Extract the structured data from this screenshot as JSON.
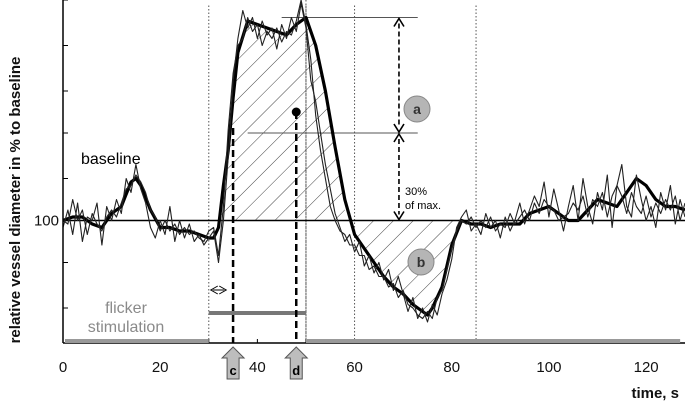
{
  "chart_data": {
    "type": "line",
    "title": "",
    "xlabel": "time, s",
    "ylabel": "relative vessel diameter in % to baseline",
    "xlim": [
      0,
      128
    ],
    "x_ticks": [
      0,
      20,
      40,
      60,
      80,
      100,
      120
    ],
    "y_ticks": [
      100
    ],
    "ylim": [
      65,
      163
    ],
    "grid": false,
    "baseline_value": 100,
    "series": [
      {
        "style": "smoothed-thick",
        "x": [
          0,
          2,
          4,
          6,
          8,
          10,
          12,
          14,
          15,
          16,
          18,
          20,
          22,
          24,
          26,
          28,
          30,
          31,
          32,
          33,
          34,
          35,
          36,
          38,
          40,
          42,
          44,
          46,
          48,
          50,
          52,
          54,
          56,
          58,
          60,
          62,
          64,
          66,
          68,
          70,
          72,
          74,
          75,
          76,
          78,
          80,
          82,
          84,
          86,
          88,
          90,
          92,
          94,
          96,
          98,
          100,
          102,
          104,
          106,
          108,
          110,
          112,
          114,
          116,
          118,
          120,
          122,
          124,
          126,
          128
        ],
        "y": [
          100,
          101,
          101,
          99,
          98,
          102,
          104,
          111,
          112,
          110,
          103,
          98,
          98,
          97,
          97,
          96,
          95,
          95,
          98,
          110,
          120,
          135,
          148,
          157,
          156,
          155,
          154,
          153,
          156,
          158,
          150,
          137,
          121,
          106,
          96,
          92,
          88,
          84,
          81,
          79,
          76,
          74,
          73,
          75,
          81,
          93,
          100,
          99,
          99,
          98,
          99,
          99,
          99,
          102,
          103,
          104,
          102,
          100,
          100,
          103,
          106,
          105,
          104,
          108,
          112,
          110,
          106,
          104,
          104,
          103
        ]
      },
      {
        "style": "raw-thin",
        "x": [
          0,
          1,
          2,
          3,
          4,
          5,
          6,
          7,
          8,
          9,
          10,
          11,
          12,
          13,
          14,
          15,
          16,
          17,
          18,
          19,
          20,
          21,
          22,
          23,
          24,
          25,
          26,
          27,
          28,
          29,
          30,
          31,
          32,
          33,
          34,
          35,
          36,
          37,
          38,
          39,
          40,
          41,
          42,
          43,
          44,
          45,
          46,
          47,
          48,
          49,
          50,
          51,
          52,
          53,
          54,
          55,
          56,
          57,
          58,
          59,
          60,
          61,
          62,
          63,
          64,
          65,
          66,
          67,
          68,
          69,
          70,
          71,
          72,
          73,
          74,
          75,
          76,
          77,
          78,
          79,
          80,
          81,
          82,
          83,
          84,
          85,
          86,
          87,
          88,
          89,
          90,
          91,
          92,
          93,
          94,
          95,
          96,
          97,
          98,
          99,
          100,
          101,
          102,
          103,
          104,
          105,
          106,
          107,
          108,
          109,
          110,
          111,
          112,
          113,
          114,
          115,
          116,
          117,
          118,
          119,
          120,
          121,
          122,
          123,
          124,
          125,
          126,
          127,
          128
        ],
        "y": [
          98,
          103,
          96,
          105,
          94,
          101,
          100,
          105,
          93,
          104,
          100,
          106,
          102,
          112,
          108,
          116,
          109,
          105,
          98,
          95,
          100,
          96,
          104,
          94,
          100,
          95,
          99,
          94,
          96,
          93,
          95,
          97,
          88,
          100,
          118,
          140,
          152,
          160,
          155,
          158,
          152,
          157,
          153,
          155,
          149,
          156,
          152,
          158,
          154,
          162,
          155,
          140,
          134,
          125,
          116,
          109,
          102,
          98,
          94,
          96,
          91,
          94,
          87,
          90,
          85,
          88,
          83,
          86,
          80,
          84,
          79,
          74,
          78,
          72,
          75,
          71,
          76,
          73,
          79,
          83,
          89,
          98,
          101,
          103,
          97,
          99,
          96,
          102,
          98,
          100,
          95,
          101,
          97,
          100,
          105,
          99,
          103,
          107,
          104,
          111,
          101,
          109,
          103,
          97,
          104,
          110,
          100,
          112,
          104,
          99,
          108,
          103,
          113,
          98,
          110,
          116,
          104,
          101,
          113,
          106,
          100,
          104,
          98,
          108,
          103,
          110,
          99,
          106,
          101
        ]
      },
      {
        "style": "raw-thin",
        "x": [
          0,
          1,
          2,
          3,
          4,
          5,
          6,
          7,
          8,
          9,
          10,
          11,
          12,
          13,
          14,
          15,
          16,
          17,
          18,
          19,
          20,
          21,
          22,
          23,
          24,
          25,
          26,
          27,
          28,
          29,
          30,
          31,
          32,
          33,
          34,
          35,
          36,
          37,
          38,
          39,
          40,
          41,
          42,
          43,
          44,
          45,
          46,
          47,
          48,
          49,
          50,
          51,
          52,
          53,
          54,
          55,
          56,
          57,
          58,
          59,
          60,
          61,
          62,
          63,
          64,
          65,
          66,
          67,
          68,
          69,
          70,
          71,
          72,
          73,
          74,
          75,
          76,
          77,
          78,
          79,
          80,
          81,
          82,
          83,
          84,
          85,
          86,
          87,
          88,
          89,
          90,
          91,
          92,
          93,
          94,
          95,
          96,
          97,
          98,
          99,
          100,
          101,
          102,
          103,
          104,
          105,
          106,
          107,
          108,
          109,
          110,
          111,
          112,
          113,
          114,
          115,
          116,
          117,
          118,
          119,
          120,
          121,
          122,
          123,
          124,
          125,
          126,
          127,
          128
        ],
        "y": [
          100,
          99,
          106,
          100,
          103,
          96,
          102,
          99,
          97,
          101,
          103,
          101,
          105,
          109,
          110,
          113,
          111,
          108,
          103,
          101,
          97,
          100,
          97,
          99,
          96,
          98,
          96,
          97,
          95,
          94,
          97,
          98,
          90,
          104,
          126,
          142,
          150,
          152,
          158,
          154,
          156,
          150,
          154,
          152,
          155,
          151,
          154,
          153,
          157,
          163,
          156,
          146,
          130,
          120,
          112,
          104,
          100,
          97,
          96,
          93,
          93,
          90,
          90,
          86,
          87,
          84,
          84,
          81,
          82,
          78,
          80,
          76,
          75,
          73,
          72,
          74,
          72,
          78,
          80,
          86,
          92,
          97,
          100,
          99,
          101,
          98,
          100,
          98,
          101,
          97,
          99,
          98,
          102,
          99,
          101,
          103,
          100,
          105,
          102,
          106,
          104,
          103,
          100,
          101,
          102,
          105,
          103,
          107,
          101,
          106,
          104,
          108,
          101,
          107,
          110,
          107,
          102,
          108,
          104,
          102,
          107,
          101,
          105,
          102,
          106,
          103,
          107,
          100,
          105
        ]
      }
    ],
    "annotations": {
      "baseline_label": "baseline",
      "stimulation_label": "flicker\nstimulation",
      "stimulation_span": [
        30,
        50
      ],
      "max_label": "a",
      "undershoot_label": "b",
      "percent_label": "30%\nof max.",
      "marker_c": "c",
      "marker_d": "d",
      "marker_c_x": 35,
      "marker_d_x": 48,
      "dot": [
        48,
        131
      ],
      "max_level": 158,
      "threshold_level": 125,
      "vertical_dotted_x": [
        30,
        50,
        60,
        85
      ]
    }
  }
}
